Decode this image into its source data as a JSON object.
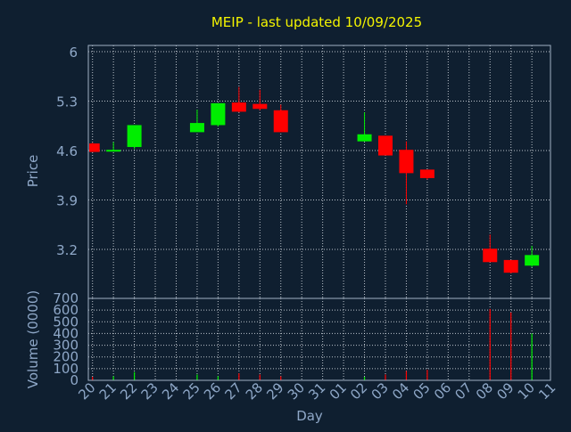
{
  "colors": {
    "background": "#0f1f30",
    "plot_border": "#a0b0c4",
    "grid": "#e8edf2",
    "text": "#8fa8c8",
    "title": "#f4f400",
    "up": "#00ee00",
    "down": "#ff0000"
  },
  "chart_data": [
    {
      "type": "candlestick",
      "title": "MEIP - last updated 10/09/2025",
      "ylabel": "Price",
      "ylim": [
        2.7,
        6.1
      ],
      "yticks": [
        3.2,
        3.9,
        4.6,
        5.3,
        6
      ],
      "ytick_labels": [
        "3.2",
        "3.9",
        "4.6",
        "5.3",
        "6"
      ],
      "grid": true,
      "days": [
        "20",
        "21",
        "22",
        "23",
        "24",
        "25",
        "26",
        "27",
        "28",
        "29",
        "30",
        "31",
        "01",
        "02",
        "03",
        "04",
        "05",
        "06",
        "07",
        "08",
        "09",
        "10",
        "11"
      ],
      "candles": [
        {
          "day": "20",
          "open": 4.58,
          "high": 4.71,
          "low": 4.58,
          "close": 4.7,
          "direction": "down"
        },
        {
          "day": "21",
          "open": 4.59,
          "high": 4.72,
          "low": 4.59,
          "close": 4.61,
          "direction": "up"
        },
        {
          "day": "22",
          "open": 4.65,
          "high": 4.96,
          "low": 4.62,
          "close": 4.96,
          "direction": "up"
        },
        {
          "day": "25",
          "open": 4.86,
          "high": 5.18,
          "low": 4.86,
          "close": 4.99,
          "direction": "up"
        },
        {
          "day": "26",
          "open": 4.96,
          "high": 5.27,
          "low": 4.94,
          "close": 5.27,
          "direction": "up"
        },
        {
          "day": "27",
          "open": 5.28,
          "high": 5.5,
          "low": 5.14,
          "close": 5.15,
          "direction": "down"
        },
        {
          "day": "28",
          "open": 5.26,
          "high": 5.46,
          "low": 5.17,
          "close": 5.19,
          "direction": "down"
        },
        {
          "day": "29",
          "open": 5.17,
          "high": 5.25,
          "low": 4.86,
          "close": 4.86,
          "direction": "down"
        },
        {
          "day": "02",
          "open": 4.73,
          "high": 5.14,
          "low": 4.73,
          "close": 4.83,
          "direction": "up"
        },
        {
          "day": "03",
          "open": 4.81,
          "high": 4.81,
          "low": 4.53,
          "close": 4.53,
          "direction": "down"
        },
        {
          "day": "04",
          "open": 4.61,
          "high": 4.73,
          "low": 3.84,
          "close": 4.28,
          "direction": "down"
        },
        {
          "day": "05",
          "open": 4.33,
          "high": 4.33,
          "low": 4.19,
          "close": 4.21,
          "direction": "down"
        },
        {
          "day": "08",
          "open": 3.21,
          "high": 3.41,
          "low": 3.02,
          "close": 3.02,
          "direction": "down"
        },
        {
          "day": "09",
          "open": 3.05,
          "high": 3.05,
          "low": 2.86,
          "close": 2.87,
          "direction": "down"
        },
        {
          "day": "10",
          "open": 2.97,
          "high": 3.25,
          "low": 2.95,
          "close": 3.12,
          "direction": "up"
        }
      ]
    },
    {
      "type": "bar",
      "ylabel": "Volume (0000)",
      "xlabel": "Day",
      "ylim": [
        0,
        700
      ],
      "yticks": [
        0,
        100,
        200,
        300,
        400,
        500,
        600,
        700
      ],
      "grid": true,
      "categories": [
        "20",
        "21",
        "22",
        "23",
        "24",
        "25",
        "26",
        "27",
        "28",
        "29",
        "30",
        "31",
        "01",
        "02",
        "03",
        "04",
        "05",
        "06",
        "07",
        "08",
        "09",
        "10",
        "11"
      ],
      "values": [
        {
          "day": "20",
          "volume": 30,
          "direction": "down"
        },
        {
          "day": "21",
          "volume": 35,
          "direction": "up"
        },
        {
          "day": "22",
          "volume": 70,
          "direction": "up"
        },
        {
          "day": "25",
          "volume": 50,
          "direction": "up"
        },
        {
          "day": "26",
          "volume": 35,
          "direction": "up"
        },
        {
          "day": "27",
          "volume": 60,
          "direction": "down"
        },
        {
          "day": "28",
          "volume": 50,
          "direction": "down"
        },
        {
          "day": "29",
          "volume": 35,
          "direction": "down"
        },
        {
          "day": "02",
          "volume": 30,
          "direction": "up"
        },
        {
          "day": "03",
          "volume": 50,
          "direction": "down"
        },
        {
          "day": "04",
          "volume": 80,
          "direction": "down"
        },
        {
          "day": "05",
          "volume": 90,
          "direction": "down"
        },
        {
          "day": "08",
          "volume": 610,
          "direction": "down"
        },
        {
          "day": "09",
          "volume": 580,
          "direction": "down"
        },
        {
          "day": "10",
          "volume": 400,
          "direction": "up"
        }
      ]
    }
  ]
}
